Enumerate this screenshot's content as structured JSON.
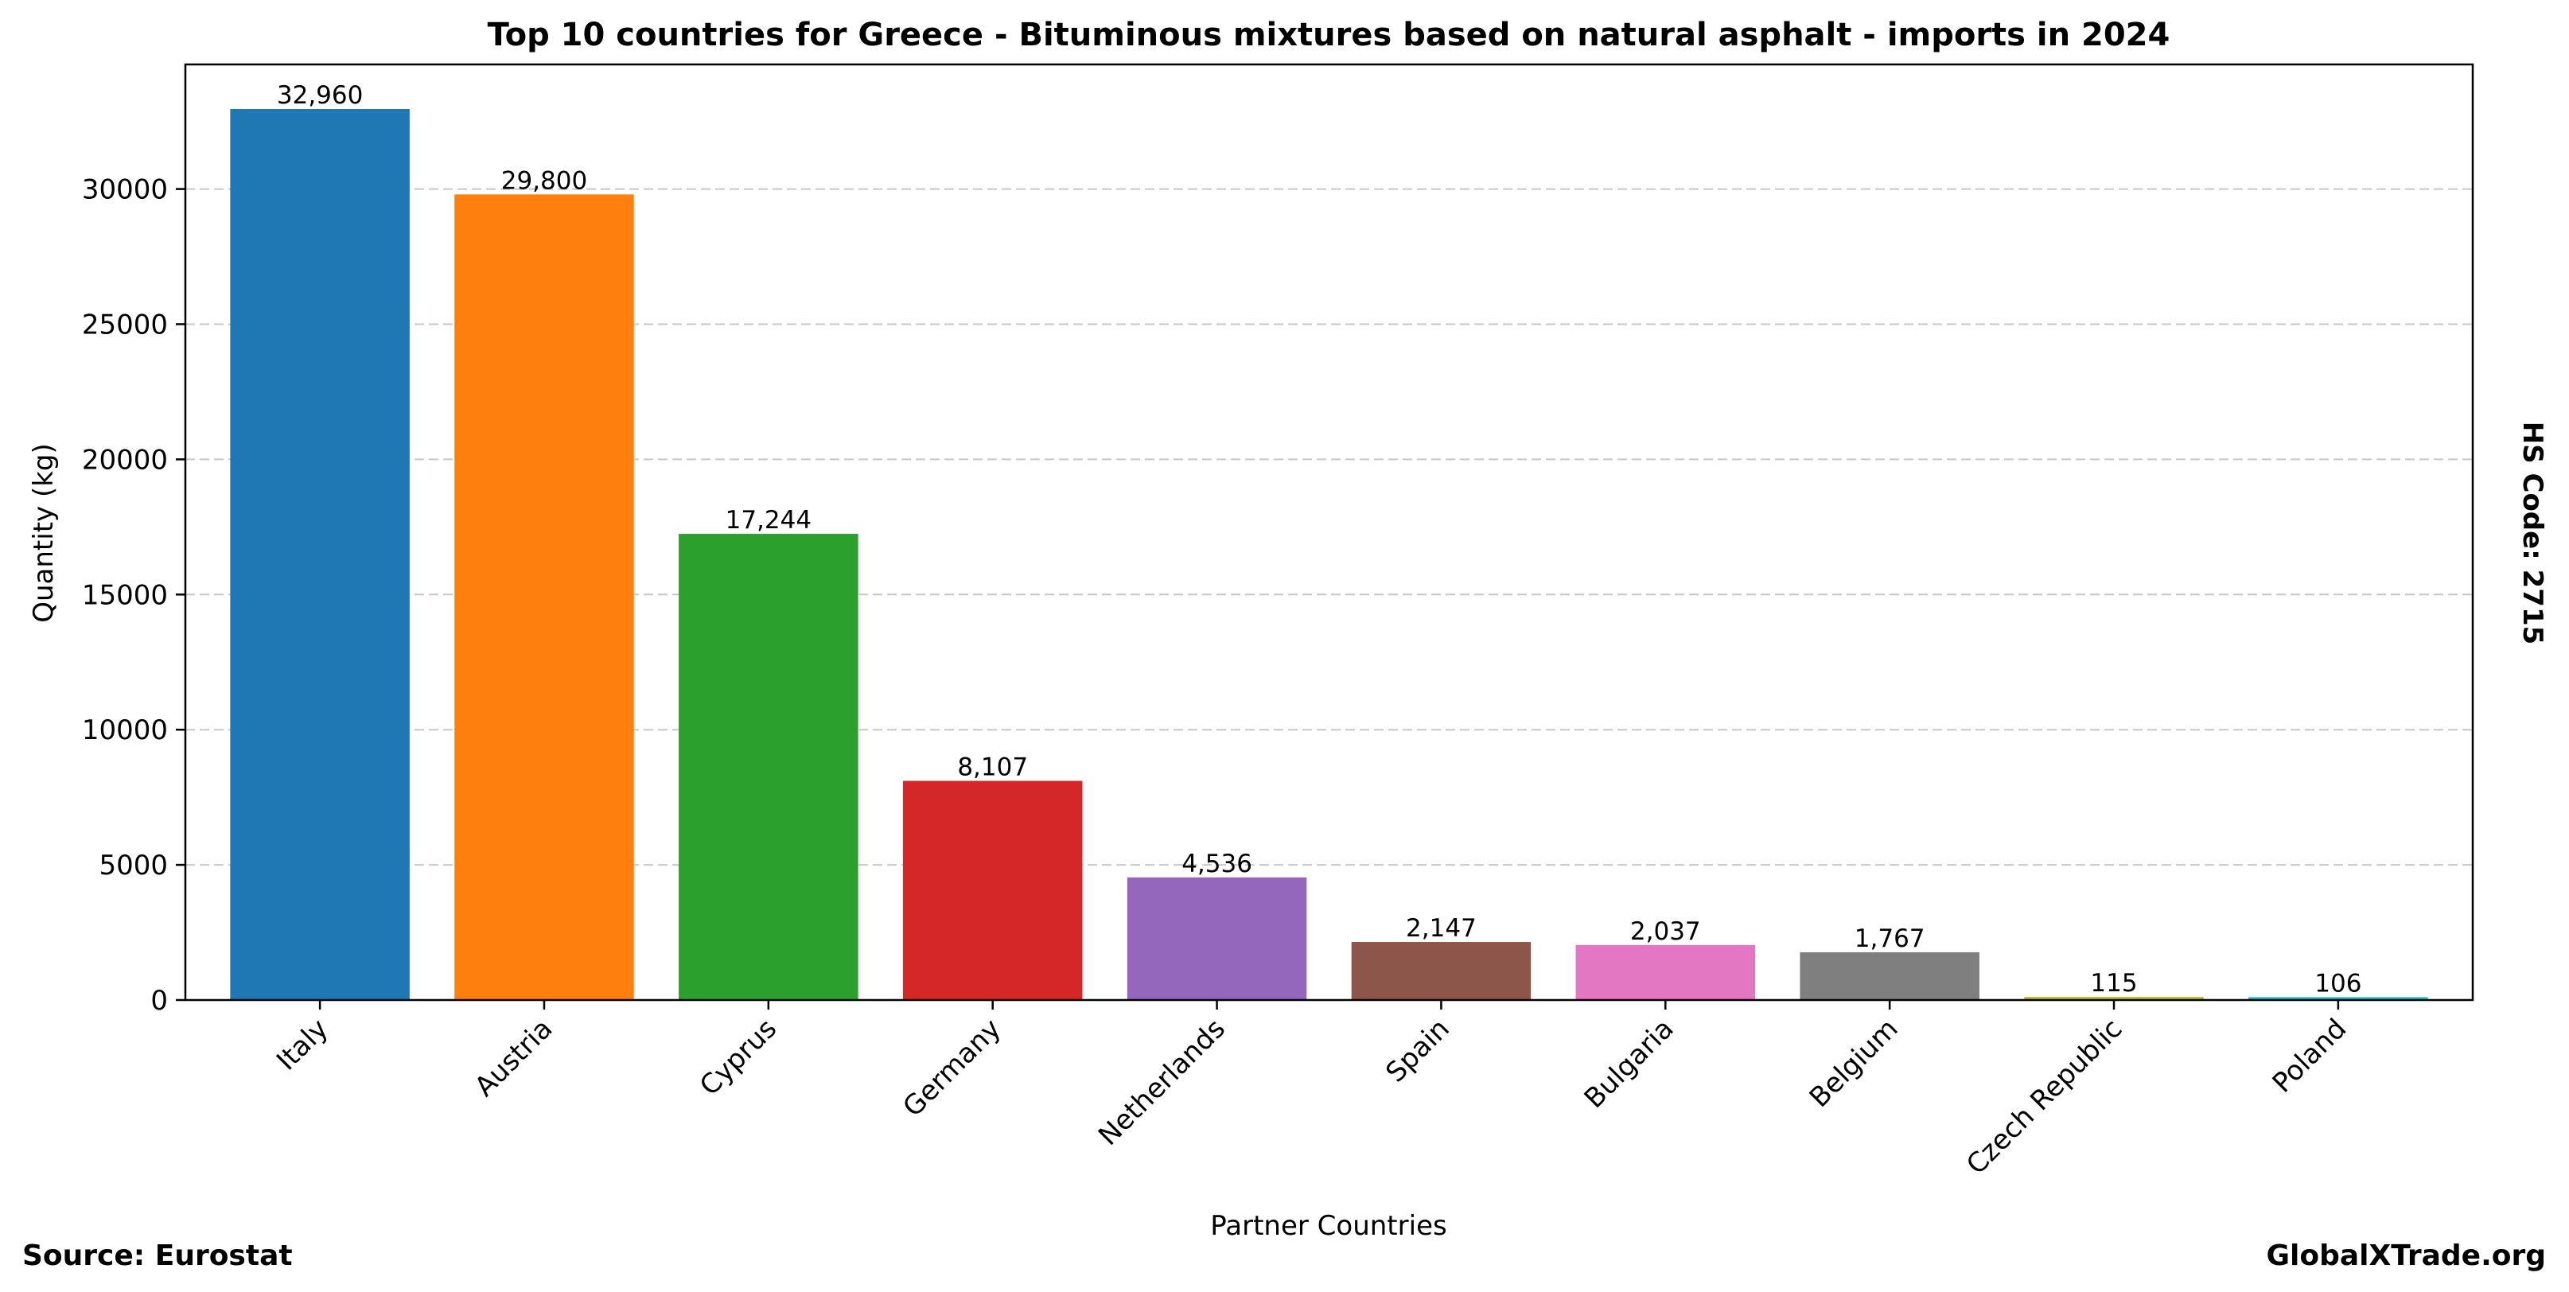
{
  "chart_data": {
    "type": "bar",
    "title": "Top 10 countries for Greece - Bituminous mixtures based on natural asphalt - imports in 2024",
    "xlabel": "Partner Countries",
    "ylabel": "Quantity (kg)",
    "categories": [
      "Italy",
      "Austria",
      "Cyprus",
      "Germany",
      "Netherlands",
      "Spain",
      "Bulgaria",
      "Belgium",
      "Czech Republic",
      "Poland"
    ],
    "values": [
      32960,
      29800,
      17244,
      8107,
      4536,
      2147,
      2037,
      1767,
      115,
      106
    ],
    "value_labels": [
      "32,960",
      "29,800",
      "17,244",
      "8,107",
      "4,536",
      "2,147",
      "2,037",
      "1,767",
      "115",
      "106"
    ],
    "colors": [
      "#1f77b4",
      "#ff7f0e",
      "#2ca02c",
      "#d62728",
      "#9467bd",
      "#8c564b",
      "#e377c2",
      "#7f7f7f",
      "#bcbd22",
      "#17becf"
    ],
    "yticks": [
      0,
      5000,
      10000,
      15000,
      20000,
      25000,
      30000
    ],
    "ytick_labels": [
      "0",
      "5000",
      "10000",
      "15000",
      "20000",
      "25000",
      "30000"
    ],
    "ylim": [
      0,
      34608
    ],
    "grid": "y-dashed",
    "legend": "none"
  },
  "side_note": "HS Code: 2715",
  "footer": {
    "source": "Source: Eurostat",
    "brand": "GlobalXTrade.org"
  }
}
